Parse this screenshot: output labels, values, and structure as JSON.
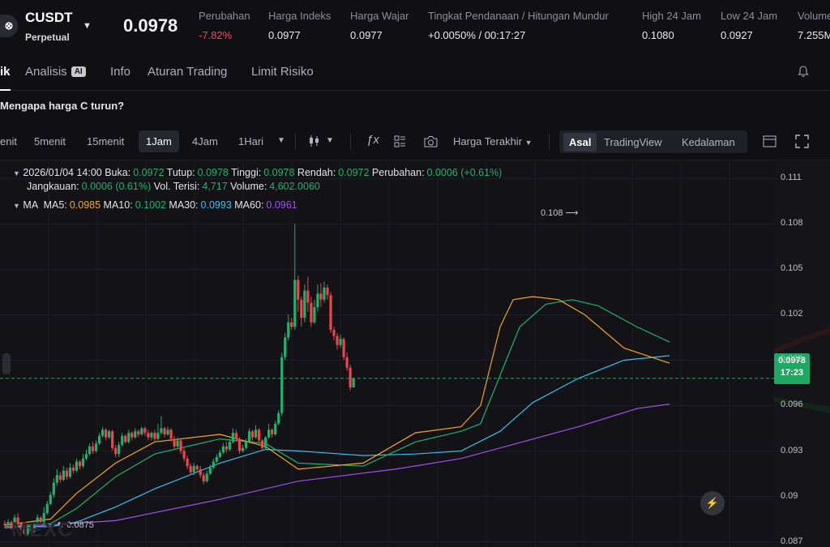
{
  "header": {
    "logo_glyph": "⊗",
    "symbol": "CUSDT",
    "contract_type": "Perpetual",
    "last_price": "0.0978",
    "stats": [
      {
        "key": "change",
        "label": "Perubahan",
        "value": "-7.82%",
        "color": "#f0475a"
      },
      {
        "key": "index",
        "label": "Harga Indeks",
        "value": "0.0977"
      },
      {
        "key": "fair",
        "label": "Harga Wajar",
        "value": "0.0977"
      },
      {
        "key": "funding",
        "label": "Tingkat Pendanaan / Hitungan Mundur",
        "value": "+0.0050% / 00:17:27"
      },
      {
        "key": "high",
        "label": "High 24 Jam",
        "value": "0.1080"
      },
      {
        "key": "low",
        "label": "Low 24 Jam",
        "value": "0.0927"
      },
      {
        "key": "volume",
        "label": "Volume",
        "value": "7.255M"
      }
    ]
  },
  "tabs": {
    "chart_partial": "ik",
    "analysis": "Analisis",
    "analysis_badge": "AI",
    "info": "Info",
    "rules": "Aturan Trading",
    "risk": "Limit Risiko"
  },
  "question": "Mengapa harga C turun?",
  "toolbar": {
    "timeframes": [
      "enit",
      "5menit",
      "15menit",
      "1Jam",
      "4Jam",
      "1Hari"
    ],
    "active_timeframe": "1Jam",
    "price_type": "Harga Terakhir",
    "views": [
      "Asal",
      "TradingView",
      "Kedalaman"
    ],
    "active_view": "Asal"
  },
  "ohlc": {
    "date_label": "2026/01/04 14:00",
    "open_label": "Buka:",
    "open": "0.0972",
    "close_label": "Tutup:",
    "close": "0.0978",
    "high_label": "Tinggi:",
    "high": "0.0978",
    "low_label": "Rendah:",
    "low": "0.0972",
    "change_label": "Perubahan:",
    "change": "0.0006 (+0.61%)",
    "range_label": "Jangkauan:",
    "range": "0.0006 (0.61%)",
    "fills_label": "Vol. Terisi:",
    "fills": "4,717",
    "volume_label": "Volume:",
    "volume": "4,602.0060"
  },
  "ma": {
    "title": "MA",
    "ma5_label": "MA5:",
    "ma5": "0.0985",
    "ma10_label": "MA10:",
    "ma10": "0.1002",
    "ma30_label": "MA30:",
    "ma30": "0.0993",
    "ma60_label": "MA60:",
    "ma60": "0.0961"
  },
  "chart_data": {
    "type": "candlestick",
    "y_axis_labels": [
      "0.111",
      "0.108",
      "0.105",
      "0.102",
      "0.099",
      "0.096",
      "0.093",
      "0.09",
      "0.087"
    ],
    "ylim": [
      0.0866,
      0.1122
    ],
    "max_marker": "0.108",
    "min_marker": "0.0875",
    "last_price_tag": "0.0978",
    "countdown_tag": "17:23",
    "colors": {
      "up": "#20b26c",
      "down": "#ef454a",
      "ma5": "#f5a623",
      "ma10": "#20b26c",
      "ma30": "#37c0e8",
      "ma60": "#a050f0",
      "last_line": "#1ea862"
    },
    "candles": [
      [
        0.0882,
        0.0881,
        0.0884,
        0.0879
      ],
      [
        0.0881,
        0.0883,
        0.0885,
        0.088
      ],
      [
        0.0883,
        0.088,
        0.0884,
        0.0878
      ],
      [
        0.088,
        0.0886,
        0.0888,
        0.0879
      ],
      [
        0.0886,
        0.0882,
        0.0889,
        0.0881
      ],
      [
        0.0882,
        0.0878,
        0.0883,
        0.0876
      ],
      [
        0.0878,
        0.0875,
        0.088,
        0.0875
      ],
      [
        0.0875,
        0.0879,
        0.0881,
        0.0874
      ],
      [
        0.0879,
        0.0877,
        0.0882,
        0.0876
      ],
      [
        0.0877,
        0.0882,
        0.0884,
        0.0876
      ],
      [
        0.0882,
        0.0886,
        0.0888,
        0.0881
      ],
      [
        0.0886,
        0.0883,
        0.0887,
        0.0882
      ],
      [
        0.0883,
        0.0889,
        0.0893,
        0.0882
      ],
      [
        0.0889,
        0.0895,
        0.0897,
        0.0888
      ],
      [
        0.0895,
        0.0901,
        0.0903,
        0.0894
      ],
      [
        0.0901,
        0.0909,
        0.0912,
        0.0899
      ],
      [
        0.0909,
        0.0914,
        0.0918,
        0.0907
      ],
      [
        0.0914,
        0.0911,
        0.0916,
        0.0909
      ],
      [
        0.0911,
        0.0917,
        0.092,
        0.091
      ],
      [
        0.0917,
        0.0913,
        0.0919,
        0.0911
      ],
      [
        0.0913,
        0.0919,
        0.0922,
        0.0912
      ],
      [
        0.0919,
        0.0917,
        0.0921,
        0.0915
      ],
      [
        0.0917,
        0.0923,
        0.0925,
        0.0916
      ],
      [
        0.0923,
        0.092,
        0.0924,
        0.0918
      ],
      [
        0.092,
        0.0925,
        0.0928,
        0.0919
      ],
      [
        0.0925,
        0.0928,
        0.0931,
        0.0924
      ],
      [
        0.0928,
        0.0933,
        0.0935,
        0.0927
      ],
      [
        0.0933,
        0.093,
        0.0936,
        0.0928
      ],
      [
        0.093,
        0.0935,
        0.0937,
        0.0929
      ],
      [
        0.0935,
        0.094,
        0.0942,
        0.0934
      ],
      [
        0.094,
        0.0944,
        0.0946,
        0.0939
      ],
      [
        0.0944,
        0.0939,
        0.0945,
        0.0937
      ],
      [
        0.0939,
        0.0943,
        0.0944,
        0.0938
      ],
      [
        0.0943,
        0.0932,
        0.0944,
        0.093
      ],
      [
        0.0932,
        0.0928,
        0.0934,
        0.0926
      ],
      [
        0.0928,
        0.0934,
        0.0936,
        0.0926
      ],
      [
        0.0934,
        0.094,
        0.0942,
        0.0933
      ],
      [
        0.094,
        0.0936,
        0.0941,
        0.0935
      ],
      [
        0.0936,
        0.0942,
        0.0944,
        0.0935
      ],
      [
        0.0942,
        0.0939,
        0.0943,
        0.0937
      ],
      [
        0.0939,
        0.0943,
        0.0945,
        0.0938
      ],
      [
        0.0943,
        0.0941,
        0.0944,
        0.0939
      ],
      [
        0.0941,
        0.0945,
        0.0946,
        0.094
      ],
      [
        0.0945,
        0.0942,
        0.0946,
        0.094
      ],
      [
        0.0942,
        0.0939,
        0.0944,
        0.0937
      ],
      [
        0.0939,
        0.0942,
        0.0943,
        0.0937
      ],
      [
        0.0942,
        0.0938,
        0.0944,
        0.0936
      ],
      [
        0.0938,
        0.0942,
        0.0948,
        0.0937
      ],
      [
        0.0942,
        0.0945,
        0.0953,
        0.0941
      ],
      [
        0.0945,
        0.0941,
        0.0946,
        0.0939
      ],
      [
        0.0941,
        0.0944,
        0.0946,
        0.094
      ],
      [
        0.0944,
        0.0938,
        0.0945,
        0.0936
      ],
      [
        0.0938,
        0.0933,
        0.094,
        0.0931
      ],
      [
        0.0933,
        0.0937,
        0.0939,
        0.0932
      ],
      [
        0.0937,
        0.093,
        0.0938,
        0.0928
      ],
      [
        0.093,
        0.0925,
        0.0932,
        0.0923
      ],
      [
        0.0925,
        0.092,
        0.0927,
        0.0918
      ],
      [
        0.092,
        0.0916,
        0.0922,
        0.0914
      ],
      [
        0.0916,
        0.092,
        0.0922,
        0.0914
      ],
      [
        0.092,
        0.0918,
        0.0921,
        0.0916
      ],
      [
        0.0918,
        0.0914,
        0.092,
        0.0912
      ],
      [
        0.0914,
        0.091,
        0.0916,
        0.0908
      ],
      [
        0.091,
        0.0915,
        0.0917,
        0.0909
      ],
      [
        0.0915,
        0.0919,
        0.0921,
        0.0914
      ],
      [
        0.0919,
        0.0923,
        0.0925,
        0.0918
      ],
      [
        0.0923,
        0.0926,
        0.0928,
        0.0922
      ],
      [
        0.0926,
        0.0929,
        0.0931,
        0.0925
      ],
      [
        0.0929,
        0.0933,
        0.0935,
        0.0928
      ],
      [
        0.0933,
        0.0931,
        0.0936,
        0.0929
      ],
      [
        0.0931,
        0.0936,
        0.0938,
        0.093
      ],
      [
        0.0936,
        0.0942,
        0.0945,
        0.0935
      ],
      [
        0.0942,
        0.0938,
        0.0944,
        0.0936
      ],
      [
        0.0938,
        0.093,
        0.0939,
        0.0928
      ],
      [
        0.093,
        0.0932,
        0.0934,
        0.0929
      ],
      [
        0.0932,
        0.0936,
        0.0938,
        0.0931
      ],
      [
        0.0936,
        0.0943,
        0.0945,
        0.0935
      ],
      [
        0.0943,
        0.0939,
        0.0944,
        0.0937
      ],
      [
        0.0939,
        0.0944,
        0.0947,
        0.0938
      ],
      [
        0.0944,
        0.0937,
        0.0945,
        0.0935
      ],
      [
        0.0937,
        0.0932,
        0.0938,
        0.093
      ],
      [
        0.0932,
        0.0939,
        0.094,
        0.0931
      ],
      [
        0.0939,
        0.0944,
        0.0948,
        0.0938
      ],
      [
        0.0944,
        0.0941,
        0.0945,
        0.0939
      ],
      [
        0.0941,
        0.0948,
        0.095,
        0.094
      ],
      [
        0.0948,
        0.0955,
        0.0957,
        0.0947
      ],
      [
        0.0955,
        0.0992,
        0.0995,
        0.0953
      ],
      [
        0.0992,
        0.1005,
        0.1008,
        0.099
      ],
      [
        0.1005,
        0.1015,
        0.102,
        0.1003
      ],
      [
        0.1015,
        0.1012,
        0.1018,
        0.101
      ],
      [
        0.1012,
        0.1043,
        0.108,
        0.101
      ],
      [
        0.1043,
        0.103,
        0.1046,
        0.1022
      ],
      [
        0.103,
        0.1018,
        0.1032,
        0.1012
      ],
      [
        0.1018,
        0.1036,
        0.104,
        0.1015
      ],
      [
        0.1036,
        0.1028,
        0.1045,
        0.1022
      ],
      [
        0.1028,
        0.1015,
        0.1032,
        0.1012
      ],
      [
        0.1015,
        0.1025,
        0.103,
        0.1014
      ],
      [
        0.1025,
        0.1034,
        0.104,
        0.1022
      ],
      [
        0.1034,
        0.103,
        0.1041,
        0.1025
      ],
      [
        0.103,
        0.1038,
        0.1042,
        0.1028
      ],
      [
        0.1038,
        0.1033,
        0.104,
        0.103
      ],
      [
        0.1033,
        0.101,
        0.1035,
        0.1008
      ],
      [
        0.101,
        0.1006,
        0.1012,
        0.1003
      ],
      [
        0.1006,
        0.1,
        0.1008,
        0.0997
      ],
      [
        0.1,
        0.1004,
        0.1007,
        0.0998
      ],
      [
        0.1004,
        0.0992,
        0.1005,
        0.099
      ],
      [
        0.0992,
        0.0985,
        0.0995,
        0.0983
      ],
      [
        0.0985,
        0.0972,
        0.0987,
        0.097
      ],
      [
        0.0972,
        0.0978,
        0.0978,
        0.0972
      ]
    ],
    "ma_series": {
      "ma5": [
        [
          0,
          0.0881
        ],
        [
          14,
          0.0885
        ],
        [
          22,
          0.0902
        ],
        [
          34,
          0.0922
        ],
        [
          46,
          0.0936
        ],
        [
          66,
          0.0941
        ],
        [
          80,
          0.0933
        ],
        [
          90,
          0.0918
        ],
        [
          110,
          0.0922
        ],
        [
          126,
          0.0942
        ],
        [
          140,
          0.0946
        ],
        [
          146,
          0.096
        ],
        [
          152,
          0.1012
        ],
        [
          156,
          0.103
        ],
        [
          162,
          0.1032
        ],
        [
          170,
          0.103
        ],
        [
          178,
          0.102
        ],
        [
          190,
          0.0998
        ],
        [
          204,
          0.0988
        ]
      ],
      "ma10": [
        [
          0,
          0.088
        ],
        [
          14,
          0.0882
        ],
        [
          22,
          0.0892
        ],
        [
          34,
          0.0913
        ],
        [
          46,
          0.0928
        ],
        [
          66,
          0.0938
        ],
        [
          80,
          0.0935
        ],
        [
          90,
          0.0922
        ],
        [
          110,
          0.092
        ],
        [
          126,
          0.0936
        ],
        [
          140,
          0.0943
        ],
        [
          146,
          0.0948
        ],
        [
          152,
          0.098
        ],
        [
          158,
          0.1012
        ],
        [
          166,
          0.1027
        ],
        [
          174,
          0.103
        ],
        [
          182,
          0.1026
        ],
        [
          194,
          0.1012
        ],
        [
          204,
          0.1002
        ]
      ],
      "ma30": [
        [
          0,
          0.088
        ],
        [
          14,
          0.088
        ],
        [
          22,
          0.0883
        ],
        [
          34,
          0.0893
        ],
        [
          46,
          0.0905
        ],
        [
          66,
          0.0922
        ],
        [
          80,
          0.0931
        ],
        [
          90,
          0.093
        ],
        [
          110,
          0.0927
        ],
        [
          126,
          0.0928
        ],
        [
          140,
          0.093
        ],
        [
          152,
          0.0943
        ],
        [
          162,
          0.0962
        ],
        [
          176,
          0.0978
        ],
        [
          190,
          0.099
        ],
        [
          204,
          0.0993
        ]
      ],
      "ma60": [
        [
          0,
          0.0879
        ],
        [
          34,
          0.0884
        ],
        [
          66,
          0.0898
        ],
        [
          90,
          0.091
        ],
        [
          120,
          0.0918
        ],
        [
          140,
          0.0925
        ],
        [
          152,
          0.0932
        ],
        [
          176,
          0.0946
        ],
        [
          194,
          0.0958
        ],
        [
          204,
          0.0961
        ]
      ]
    }
  },
  "watermark": "MEXC",
  "bolt_glyph": "⚡"
}
